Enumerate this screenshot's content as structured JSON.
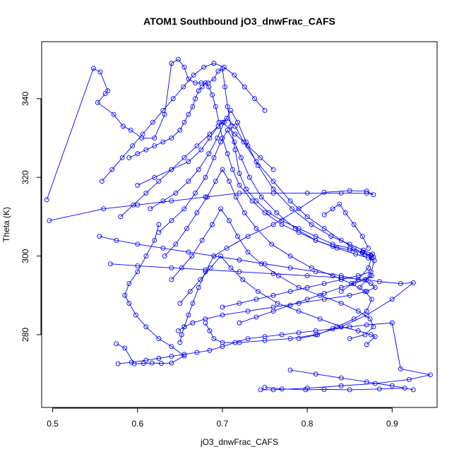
{
  "chart_data": {
    "type": "scatter",
    "title": "ATOM1 Southbound jO3_dnwFrac_CAFS",
    "xlabel": "jO3_dnwFrac_CAFS",
    "ylabel": "Theta (K)",
    "xlim": [
      0.487,
      0.953
    ],
    "ylim": [
      261.5,
      354.5
    ],
    "xticks": [
      0.5,
      0.6,
      0.7,
      0.8,
      0.9
    ],
    "yticks": [
      280,
      300,
      320,
      340
    ],
    "xtick_labels": [
      "0.5",
      "0.6",
      "0.7",
      "0.8",
      "0.9"
    ],
    "ytick_labels": [
      "280",
      "300",
      "320",
      "340"
    ],
    "grid": false,
    "legend": "none",
    "color": "#0000ff",
    "marker": "open-circle",
    "connected": true,
    "series": [
      {
        "x": [
          0.493,
          0.548,
          0.556,
          0.565,
          0.562,
          0.553,
          0.572,
          0.583,
          0.592,
          0.605,
          0.62,
          0.632,
          0.64,
          0.648,
          0.655,
          0.66,
          0.668,
          0.675,
          0.683,
          0.69,
          0.695,
          0.7,
          0.703,
          0.706,
          0.71,
          0.715,
          0.72,
          0.728,
          0.74,
          0.755,
          0.77,
          0.79,
          0.81,
          0.83,
          0.85,
          0.865,
          0.875
        ],
        "y": [
          314.3,
          347.7,
          346.8,
          342.0,
          341.3,
          339.0,
          336.0,
          333.0,
          332.0,
          330.0,
          330.0,
          336.0,
          349.0,
          350.0,
          348.0,
          345.0,
          344.0,
          344.0,
          344.0,
          345.0,
          347.0,
          347.6,
          343.0,
          338.0,
          333.0,
          327.0,
          321.0,
          317.0,
          314.0,
          311.0,
          309.0,
          307.0,
          305.0,
          303.0,
          302.0,
          301.0,
          300.0
        ]
      },
      {
        "x": [
          0.496,
          0.56,
          0.6,
          0.64,
          0.68,
          0.72,
          0.76,
          0.8,
          0.84,
          0.87,
          0.878,
          0.87,
          0.85,
          0.82,
          0.79,
          0.76,
          0.73,
          0.705,
          0.69,
          0.68,
          0.672,
          0.665,
          0.66,
          0.655,
          0.652,
          0.65
        ],
        "y": [
          309.0,
          312.0,
          313.0,
          314.0,
          315.0,
          316.0,
          316.0,
          316.0,
          316.0,
          316.0,
          315.6,
          316.5,
          316.6,
          316.2,
          312.0,
          308.0,
          305.0,
          302.0,
          300.0,
          296.0,
          292.0,
          288.0,
          285.0,
          282.0,
          280.0,
          278.0
        ]
      },
      {
        "x": [
          0.555,
          0.575,
          0.6,
          0.63,
          0.66,
          0.69,
          0.72,
          0.75,
          0.78,
          0.81,
          0.84,
          0.86,
          0.875,
          0.88,
          0.87,
          0.85,
          0.82,
          0.79,
          0.76,
          0.73,
          0.7,
          0.68,
          0.665,
          0.655,
          0.648
        ],
        "y": [
          305.0,
          304.0,
          303.0,
          302.0,
          301.0,
          300.0,
          299.0,
          298.0,
          297.0,
          296.0,
          295.0,
          294.0,
          293.0,
          292.0,
          291.0,
          290.0,
          289.0,
          288.0,
          287.0,
          286.0,
          285.0,
          284.0,
          283.0,
          282.0,
          281.0
        ]
      },
      {
        "x": [
          0.568,
          0.6,
          0.64,
          0.68,
          0.72,
          0.76,
          0.8,
          0.84,
          0.87,
          0.885,
          0.91,
          0.925,
          0.9,
          0.87,
          0.84,
          0.81,
          0.78,
          0.75,
          0.72,
          0.7,
          0.69,
          0.685,
          0.68
        ],
        "y": [
          298.0,
          297.5,
          297.0,
          296.5,
          296.0,
          295.5,
          295.0,
          294.5,
          294.0,
          293.5,
          293.0,
          293.2,
          289.0,
          285.0,
          282.0,
          280.0,
          279.0,
          278.5,
          278.0,
          278.0,
          279.0,
          281.0,
          283.0
        ]
      },
      {
        "x": [
          0.575,
          0.585,
          0.596,
          0.607,
          0.617,
          0.628,
          0.64,
          0.655,
          0.64,
          0.625,
          0.61,
          0.598,
          0.59,
          0.585,
          0.59,
          0.6,
          0.61,
          0.62,
          0.625
        ],
        "y": [
          277.7,
          276.6,
          272.6,
          272.7,
          272.8,
          272.7,
          272.8,
          274.6,
          277.0,
          279.0,
          282.0,
          285.0,
          288.0,
          290.0,
          293.0,
          296.0,
          300.0,
          304.0,
          308.0
        ]
      },
      {
        "x": [
          0.577,
          0.593,
          0.61,
          0.625,
          0.64,
          0.655,
          0.67,
          0.685,
          0.7,
          0.715,
          0.73,
          0.75,
          0.77,
          0.79,
          0.81,
          0.83,
          0.85,
          0.87,
          0.9,
          0.91,
          0.945,
          0.92,
          0.88,
          0.84,
          0.8,
          0.76,
          0.745
        ],
        "y": [
          272.6,
          273.0,
          273.5,
          274.0,
          274.5,
          275.0,
          275.5,
          276.0,
          277.0,
          278.0,
          279.0,
          279.5,
          280.0,
          280.5,
          281.0,
          281.5,
          282.0,
          282.5,
          283.0,
          271.3,
          269.8,
          268.6,
          267.6,
          267.0,
          266.4,
          266.0,
          266.0
        ]
      },
      {
        "x": [
          0.75,
          0.77,
          0.798,
          0.82,
          0.85,
          0.885,
          0.915,
          0.925,
          0.9,
          0.87,
          0.84,
          0.81,
          0.78
        ],
        "y": [
          266.6,
          266.2,
          266.0,
          266.1,
          266.0,
          266.2,
          266.4,
          266.0,
          267.0,
          268.0,
          269.0,
          270.0,
          271.0
        ]
      },
      {
        "x": [
          0.59,
          0.6,
          0.61,
          0.62,
          0.63,
          0.64,
          0.65,
          0.655,
          0.66,
          0.665,
          0.668,
          0.672,
          0.676,
          0.68,
          0.684,
          0.688,
          0.692,
          0.696,
          0.7,
          0.706,
          0.712,
          0.72,
          0.735,
          0.75,
          0.77,
          0.79,
          0.81,
          0.83,
          0.85,
          0.865,
          0.875,
          0.878
        ],
        "y": [
          325.0,
          326.0,
          327.0,
          328.0,
          329.0,
          330.0,
          332.0,
          334.0,
          336.0,
          338.0,
          340.0,
          342.0,
          343.0,
          344.0,
          343.0,
          341.0,
          338.0,
          334.0,
          330.0,
          326.0,
          322.0,
          318.0,
          314.0,
          311.0,
          308.0,
          306.0,
          304.0,
          302.5,
          301.5,
          300.8,
          300.2,
          299.7
        ]
      },
      {
        "x": [
          0.6,
          0.62,
          0.64,
          0.66,
          0.675,
          0.685,
          0.695,
          0.705,
          0.715,
          0.725,
          0.74,
          0.76,
          0.78,
          0.8,
          0.82,
          0.84,
          0.855,
          0.868,
          0.876
        ],
        "y": [
          318.0,
          320.0,
          322.0,
          324.0,
          327.0,
          330.0,
          333.0,
          335.0,
          333.0,
          329.0,
          324.0,
          319.0,
          314.0,
          310.0,
          307.0,
          304.0,
          302.0,
          300.5,
          299.5
        ]
      },
      {
        "x": [
          0.615,
          0.63,
          0.645,
          0.66,
          0.672,
          0.684,
          0.694,
          0.702,
          0.71,
          0.718,
          0.728,
          0.742,
          0.76,
          0.782,
          0.805,
          0.828,
          0.85,
          0.866,
          0.877,
          0.872,
          0.86,
          0.84
        ],
        "y": [
          312.0,
          314.0,
          316.0,
          319.0,
          322.0,
          326.0,
          330.0,
          334.0,
          337.0,
          334.0,
          329.0,
          323.0,
          317.0,
          312.0,
          308.0,
          305.0,
          303.0,
          301.5,
          300.5,
          297.0,
          294.0,
          291.0
        ]
      },
      {
        "x": [
          0.625,
          0.64,
          0.655,
          0.668,
          0.68,
          0.69,
          0.698,
          0.706,
          0.714,
          0.722,
          0.732,
          0.746,
          0.764,
          0.786,
          0.81,
          0.835,
          0.857,
          0.872,
          0.879,
          0.874,
          0.862
        ],
        "y": [
          306.0,
          309.0,
          312.0,
          316.0,
          320.0,
          325.0,
          329.0,
          332.0,
          329.0,
          325.0,
          320.0,
          315.0,
          311.0,
          307.0,
          304.0,
          302.0,
          300.5,
          299.5,
          298.8,
          295.0,
          292.0
        ]
      },
      {
        "x": [
          0.632,
          0.645,
          0.658,
          0.67,
          0.682,
          0.692,
          0.7,
          0.708,
          0.716,
          0.726,
          0.74,
          0.758,
          0.78,
          0.805,
          0.83,
          0.852,
          0.868,
          0.876,
          0.87,
          0.855,
          0.835,
          0.812,
          0.79
        ],
        "y": [
          300.0,
          303.0,
          307.0,
          311.0,
          315.0,
          319.0,
          322.0,
          319.0,
          315.0,
          311.0,
          307.0,
          303.0,
          300.0,
          297.0,
          295.0,
          293.0,
          291.0,
          289.0,
          286.0,
          284.0,
          282.0,
          280.0,
          279.0
        ]
      },
      {
        "x": [
          0.64,
          0.652,
          0.664,
          0.676,
          0.688,
          0.698,
          0.708,
          0.718,
          0.73,
          0.746,
          0.766,
          0.79,
          0.815,
          0.84,
          0.86,
          0.874,
          0.878,
          0.868,
          0.85
        ],
        "y": [
          294.0,
          297.0,
          300.0,
          304.0,
          308.0,
          312.0,
          309.0,
          305.0,
          301.0,
          298.0,
          295.0,
          292.0,
          290.0,
          288.0,
          286.0,
          284.0,
          282.0,
          280.0,
          279.0
        ]
      },
      {
        "x": [
          0.65,
          0.662,
          0.674,
          0.686,
          0.698,
          0.71,
          0.724,
          0.742,
          0.765,
          0.79,
          0.815,
          0.84,
          0.86,
          0.875,
          0.88,
          0.87
        ],
        "y": [
          288.0,
          291.0,
          294.0,
          297.0,
          300.0,
          297.0,
          294.0,
          291.0,
          288.0,
          286.0,
          284.0,
          282.0,
          281.0,
          280.0,
          279.5,
          277.5
        ]
      },
      {
        "x": [
          0.558,
          0.57,
          0.582,
          0.594,
          0.606,
          0.618,
          0.63,
          0.642,
          0.654,
          0.666,
          0.678,
          0.69,
          0.702,
          0.714,
          0.726,
          0.738,
          0.75
        ],
        "y": [
          319.0,
          322.0,
          325.0,
          328.0,
          331.0,
          334.0,
          337.0,
          340.0,
          343.0,
          346.0,
          348.0,
          349.0,
          348.0,
          346.0,
          343.0,
          340.0,
          337.0
        ]
      },
      {
        "x": [
          0.58,
          0.595,
          0.61,
          0.625,
          0.64,
          0.655,
          0.67,
          0.685,
          0.7,
          0.715,
          0.73,
          0.745,
          0.76
        ],
        "y": [
          310.0,
          313.0,
          316.0,
          319.0,
          322.0,
          325.0,
          328.0,
          331.0,
          334.0,
          331.0,
          328.0,
          325.0,
          322.0
        ]
      },
      {
        "x": [
          0.82,
          0.83,
          0.838,
          0.845,
          0.855,
          0.865,
          0.872
        ],
        "y": [
          310.5,
          312.0,
          313.2,
          311.0,
          308.0,
          305.0,
          302.0
        ]
      },
      {
        "x": [
          0.7,
          0.72,
          0.74,
          0.76,
          0.78,
          0.8,
          0.82,
          0.84,
          0.86,
          0.875
        ],
        "y": [
          287.0,
          288.0,
          289.0,
          290.0,
          291.0,
          292.0,
          293.0,
          294.0,
          295.0,
          296.0
        ]
      },
      {
        "x": [
          0.72,
          0.74,
          0.76,
          0.78,
          0.8,
          0.82,
          0.84,
          0.855,
          0.868,
          0.876
        ],
        "y": [
          283.0,
          284.5,
          286.0,
          287.5,
          289.0,
          290.5,
          292.0,
          293.0,
          294.0,
          295.0
        ]
      }
    ]
  }
}
